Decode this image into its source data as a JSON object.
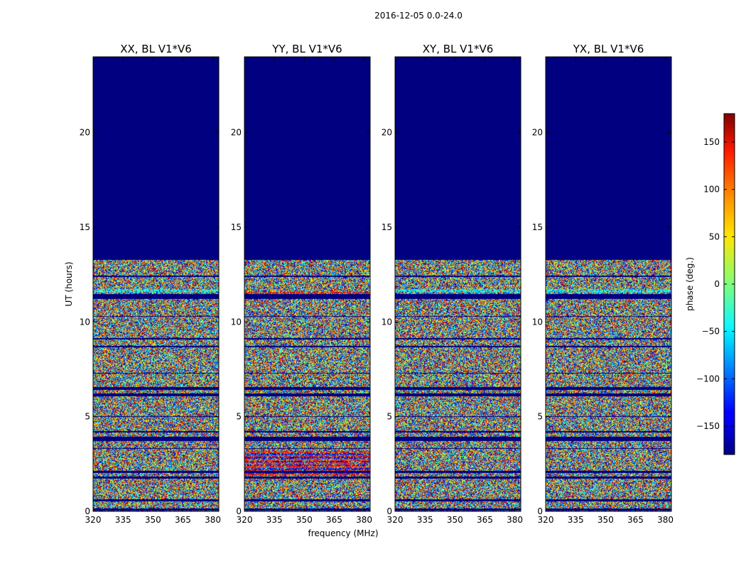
{
  "chart_data": {
    "type": "heatmap",
    "title": "2016-12-05 0.0-24.0",
    "xlabel": "frequency (MHz)",
    "ylabel": "UT (hours)",
    "colorbar_label": "phase (deg.)",
    "colormap": "jet",
    "xlim": [
      320,
      383
    ],
    "ylim": [
      0,
      24
    ],
    "clim": [
      -180,
      180
    ],
    "xticks": [
      320,
      335,
      350,
      365,
      380
    ],
    "yticks": [
      0,
      5,
      10,
      15,
      20
    ],
    "cbar_ticks": [
      150,
      100,
      50,
      0,
      -50,
      -100,
      -150
    ],
    "cbar_tick_labels": [
      "150",
      "100",
      "50",
      "0",
      "−50",
      "−100",
      "−150"
    ],
    "data_end_ut_hours": 13.3,
    "panels": [
      {
        "title": "XX, BL V1*V6",
        "flagged_value": -180
      },
      {
        "title": "YY, BL V1*V6",
        "flagged_value": -180
      },
      {
        "title": "XY, BL V1*V6",
        "flagged_value": -180
      },
      {
        "title": "YX, BL V1*V6",
        "flagged_value": -180
      }
    ]
  }
}
